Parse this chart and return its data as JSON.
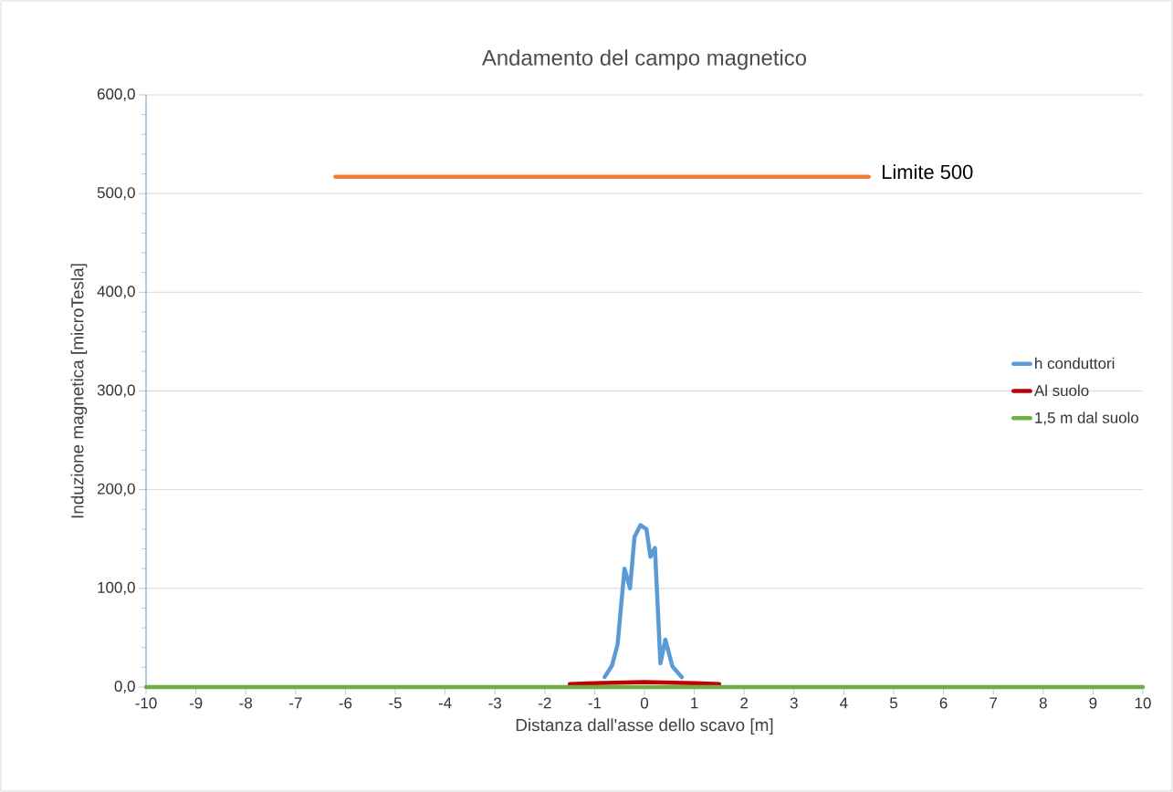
{
  "chart_data": {
    "type": "line",
    "title": "Andamento del  campo magnetico",
    "xlabel": "Distanza dall'asse dello scavo [m]",
    "ylabel": "Induzione magnetica [microTesla]",
    "xlim": [
      -10,
      10
    ],
    "xticks": [
      -10,
      -9,
      -8,
      -7,
      -6,
      -5,
      -4,
      -3,
      -2,
      -1,
      0,
      1,
      2,
      3,
      4,
      5,
      6,
      7,
      8,
      9,
      10
    ],
    "ylim": [
      0,
      600
    ],
    "yticks": [
      {
        "value": 0,
        "label": "0,0"
      },
      {
        "value": 100,
        "label": "100,0"
      },
      {
        "value": 200,
        "label": "200,0"
      },
      {
        "value": 300,
        "label": "300,0"
      },
      {
        "value": 400,
        "label": "400,0"
      },
      {
        "value": 500,
        "label": "500,0"
      },
      {
        "value": 600,
        "label": "600,0"
      }
    ],
    "grid": "y",
    "legend": "right",
    "marker": "none",
    "line_style": "solid",
    "series": [
      {
        "name": "h conduttori",
        "color": "#5b9bd5",
        "x": [
          -0.8,
          -0.65,
          -0.54,
          -0.4,
          -0.29,
          -0.2,
          -0.08,
          0.04,
          0.12,
          0.21,
          0.32,
          0.42,
          0.56,
          0.75
        ],
        "values": [
          10,
          22,
          43,
          120,
          100,
          152,
          164,
          160,
          132,
          141,
          24,
          48,
          21,
          10
        ]
      },
      {
        "name": "Al suolo",
        "color": "#c00000",
        "x": [
          -1.5,
          -1,
          0,
          1,
          1.5
        ],
        "values": [
          3,
          4,
          5,
          4,
          3
        ]
      },
      {
        "name": "1,5 m dal suolo",
        "color": "#70ad47",
        "x": [
          -10,
          10
        ],
        "values": [
          0,
          0
        ]
      },
      {
        "color": "#ed7d31",
        "x": [
          -6.2,
          4.5
        ],
        "values": [
          517,
          517
        ]
      }
    ],
    "annotations": [
      {
        "text": "Limite 500",
        "x": 4.5,
        "y": 517
      }
    ]
  }
}
